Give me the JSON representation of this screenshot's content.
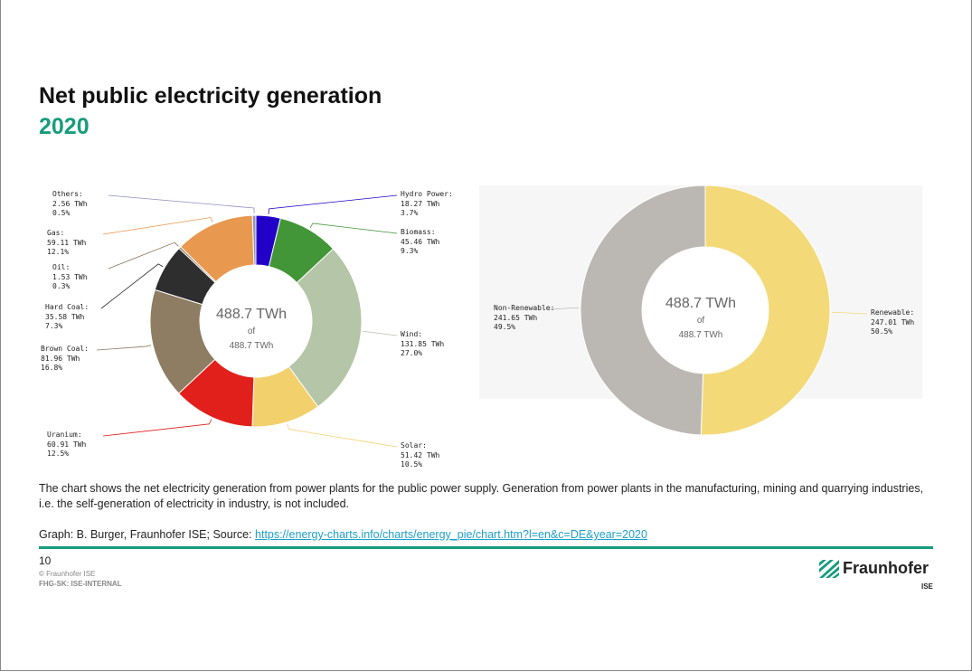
{
  "slide": {
    "title": "Net public electricity generation",
    "subtitle": "2020",
    "description": "The chart shows the net electricity generation from power plants for the public power supply. Generation from power plants in the manufacturing, mining and quarrying industries, i.e. the self-generation of electricity in industry, is not included.",
    "credit_prefix": "Graph: B. Burger, Fraunhofer ISE; Source: ",
    "credit_link": "https://energy-charts.info/charts/energy_pie/chart.htm?l=en&c=DE&year=2020",
    "page_number": "10",
    "copyright": "© Fraunhofer ISE",
    "classification": "FHG-SK: ISE-INTERNAL",
    "logo_text": "Fraunhofer",
    "logo_sub": "ISE",
    "accent_color": "#179c7d"
  },
  "chart_data": [
    {
      "type": "pie",
      "donut": true,
      "center_value": "488.7 TWh",
      "center_of": "of",
      "center_total": "488.7 TWh",
      "unit": "TWh",
      "slices": [
        {
          "name": "Hydro Power",
          "value": 18.27,
          "value_label": "18.27 TWh",
          "percent": "3.7%",
          "color": "#2300c8"
        },
        {
          "name": "Biomass",
          "value": 45.46,
          "value_label": "45.46 TWh",
          "percent": "9.3%",
          "color": "#429637"
        },
        {
          "name": "Wind",
          "value": 131.85,
          "value_label": "131.85 TWh",
          "percent": "27.0%",
          "color": "#b4c5a8"
        },
        {
          "name": "Solar",
          "value": 51.42,
          "value_label": "51.42 TWh",
          "percent": "10.5%",
          "color": "#f2d06c"
        },
        {
          "name": "Uranium",
          "value": 60.91,
          "value_label": "60.91 TWh",
          "percent": "12.5%",
          "color": "#e1201b"
        },
        {
          "name": "Brown Coal",
          "value": 81.96,
          "value_label": "81.96 TWh",
          "percent": "16.8%",
          "color": "#8e7c63"
        },
        {
          "name": "Hard Coal",
          "value": 35.58,
          "value_label": "35.58 TWh",
          "percent": "7.3%",
          "color": "#2e2e2e"
        },
        {
          "name": "Oil",
          "value": 1.53,
          "value_label": "1.53 TWh",
          "percent": "0.3%",
          "color": "#8a6f55"
        },
        {
          "name": "Gas",
          "value": 59.11,
          "value_label": "59.11 TWh",
          "percent": "12.1%",
          "color": "#e8984f"
        },
        {
          "name": "Others",
          "value": 2.56,
          "value_label": "2.56 TWh",
          "percent": "0.5%",
          "color": "#8f8fc0"
        }
      ]
    },
    {
      "type": "pie",
      "donut": true,
      "center_value": "488.7 TWh",
      "center_of": "of",
      "center_total": "488.7 TWh",
      "unit": "TWh",
      "slices": [
        {
          "name": "Renewable",
          "value": 247.01,
          "value_label": "247.01 TWh",
          "percent": "50.5%",
          "color": "#f3d978"
        },
        {
          "name": "Non-Renewable",
          "value": 241.65,
          "value_label": "241.65 TWh",
          "percent": "49.5%",
          "color": "#bbb7b3"
        }
      ]
    }
  ]
}
